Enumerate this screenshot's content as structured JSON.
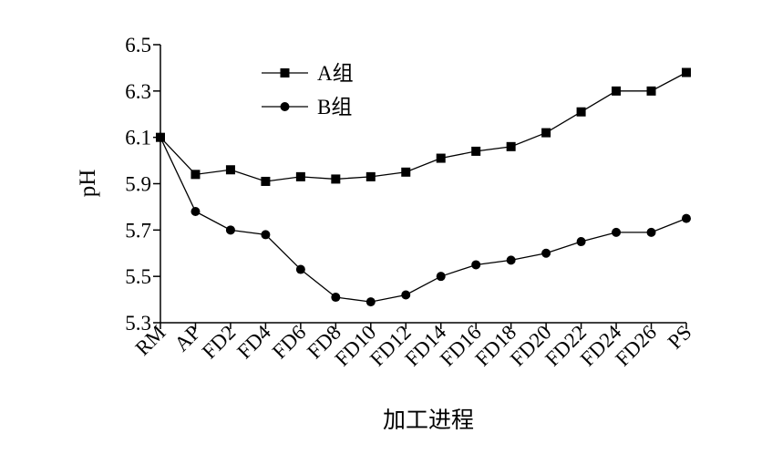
{
  "chart_data": {
    "type": "line",
    "title": "",
    "xlabel": "加工进程",
    "ylabel": "pH",
    "ylim": [
      5.3,
      6.5
    ],
    "yticks": [
      "5.3",
      "5.5",
      "5.7",
      "5.9",
      "6.1",
      "6.3",
      "6.5"
    ],
    "categories": [
      "RM",
      "AP",
      "FD2",
      "FD4",
      "FD6",
      "FD8",
      "FD10",
      "FD12",
      "FD14",
      "FD16",
      "FD18",
      "FD20",
      "FD22",
      "FD24",
      "FD26",
      "PS"
    ],
    "grid": false,
    "legend_position": "top-left",
    "series": [
      {
        "name": "A组",
        "marker": "square",
        "values": [
          6.1,
          5.94,
          5.96,
          5.91,
          5.93,
          5.92,
          5.93,
          5.95,
          6.01,
          6.04,
          6.06,
          6.12,
          6.21,
          6.3,
          6.3,
          6.38
        ]
      },
      {
        "name": "B组",
        "marker": "circle",
        "values": [
          6.1,
          5.78,
          5.7,
          5.68,
          5.53,
          5.41,
          5.39,
          5.42,
          5.5,
          5.55,
          5.57,
          5.6,
          5.65,
          5.69,
          5.69,
          5.75
        ]
      }
    ]
  }
}
